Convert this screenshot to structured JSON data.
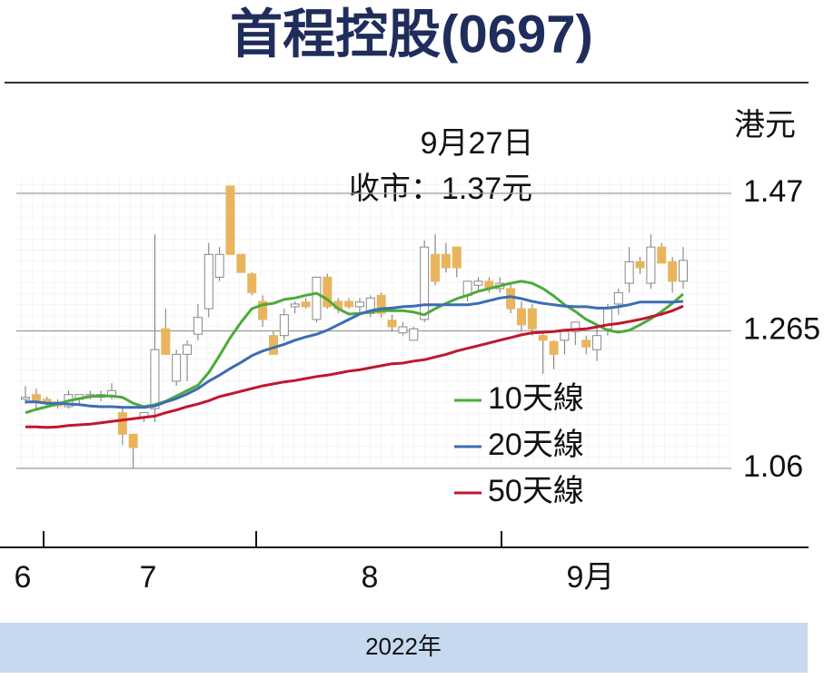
{
  "chart_data": {
    "type": "candlestick",
    "title": "首程控股(0697)",
    "unit_label": "港元",
    "annotations": [
      "9月27日",
      "收市：1.37元"
    ],
    "month_labels": [
      "6",
      "7",
      "8",
      "9月"
    ],
    "x_label": "2022年",
    "ylim": [
      1.06,
      1.47
    ],
    "yticks": [
      1.06,
      1.265,
      1.47
    ],
    "grid": true,
    "up_color": "#ffffff",
    "down_color": "#e9b55c",
    "open": [
      1.163,
      1.17,
      1.163,
      1.159,
      1.152,
      1.163,
      1.167,
      1.166,
      1.167,
      1.143,
      1.111,
      1.136,
      1.149,
      1.268,
      1.19,
      1.23,
      1.26,
      1.298,
      1.345,
      1.481,
      1.379,
      1.35,
      1.309,
      1.258,
      1.258,
      1.301,
      1.308,
      1.282,
      1.345,
      1.309,
      1.309,
      1.301,
      1.291,
      1.318,
      1.281,
      1.262,
      1.251,
      1.282,
      1.379,
      1.379,
      1.39,
      1.318,
      1.333,
      1.339,
      1.328,
      1.328,
      1.298,
      1.298,
      1.258,
      1.249,
      1.251,
      1.264,
      1.251,
      1.237,
      1.268,
      1.305,
      1.336,
      1.368,
      1.336,
      1.39,
      1.368,
      1.339
    ],
    "high": [
      1.183,
      1.179,
      1.167,
      1.163,
      1.176,
      1.17,
      1.176,
      1.176,
      1.187,
      1.149,
      1.111,
      1.143,
      1.409,
      1.298,
      1.237,
      1.251,
      1.305,
      1.396,
      1.39,
      1.481,
      1.379,
      1.352,
      1.318,
      1.264,
      1.298,
      1.309,
      1.314,
      1.345,
      1.35,
      1.314,
      1.314,
      1.314,
      1.318,
      1.322,
      1.289,
      1.278,
      1.271,
      1.4,
      1.409,
      1.396,
      1.39,
      1.339,
      1.345,
      1.345,
      1.345,
      1.336,
      1.309,
      1.305,
      1.264,
      1.251,
      1.268,
      1.278,
      1.258,
      1.271,
      1.305,
      1.328,
      1.39,
      1.375,
      1.409,
      1.396,
      1.375,
      1.39
    ],
    "low": [
      1.156,
      1.149,
      1.152,
      1.149,
      1.149,
      1.156,
      1.163,
      1.16,
      1.163,
      1.095,
      1.06,
      1.129,
      1.129,
      1.23,
      1.183,
      1.19,
      1.251,
      1.285,
      1.339,
      1.379,
      1.352,
      1.318,
      1.271,
      1.23,
      1.251,
      1.291,
      1.298,
      1.278,
      1.298,
      1.291,
      1.298,
      1.291,
      1.285,
      1.285,
      1.264,
      1.258,
      1.251,
      1.278,
      1.333,
      1.352,
      1.345,
      1.309,
      1.322,
      1.322,
      1.322,
      1.291,
      1.264,
      1.258,
      1.201,
      1.208,
      1.23,
      1.244,
      1.23,
      1.22,
      1.258,
      1.289,
      1.322,
      1.35,
      1.328,
      1.366,
      1.322,
      1.328
    ],
    "close": [
      1.166,
      1.16,
      1.156,
      1.153,
      1.17,
      1.17,
      1.17,
      1.17,
      1.176,
      1.111,
      1.091,
      1.143,
      1.237,
      1.23,
      1.23,
      1.244,
      1.285,
      1.379,
      1.379,
      1.379,
      1.352,
      1.322,
      1.282,
      1.23,
      1.289,
      1.305,
      1.301,
      1.345,
      1.301,
      1.298,
      1.301,
      1.308,
      1.314,
      1.291,
      1.271,
      1.271,
      1.268,
      1.39,
      1.339,
      1.359,
      1.359,
      1.339,
      1.339,
      1.328,
      1.336,
      1.298,
      1.274,
      1.268,
      1.251,
      1.23,
      1.264,
      1.278,
      1.241,
      1.258,
      1.298,
      1.322,
      1.368,
      1.359,
      1.39,
      1.366,
      1.339,
      1.37
    ],
    "series": [
      {
        "name": "10天線",
        "color": "#4caa3c",
        "values": [
          1.143,
          1.148,
          1.152,
          1.156,
          1.161,
          1.164,
          1.167,
          1.168,
          1.168,
          1.166,
          1.157,
          1.152,
          1.155,
          1.16,
          1.168,
          1.176,
          1.184,
          1.203,
          1.228,
          1.255,
          1.278,
          1.298,
          1.304,
          1.306,
          1.312,
          1.314,
          1.318,
          1.321,
          1.312,
          1.298,
          1.29,
          1.291,
          1.293,
          1.295,
          1.295,
          1.295,
          1.293,
          1.289,
          1.298,
          1.306,
          1.313,
          1.318,
          1.324,
          1.328,
          1.332,
          1.336,
          1.339,
          1.336,
          1.328,
          1.317,
          1.304,
          1.294,
          1.282,
          1.274,
          1.266,
          1.263,
          1.266,
          1.274,
          1.283,
          1.294,
          1.306,
          1.32
        ]
      },
      {
        "name": "20天線",
        "color": "#3b6db3",
        "values": [
          1.159,
          1.159,
          1.157,
          1.157,
          1.156,
          1.155,
          1.153,
          1.152,
          1.152,
          1.151,
          1.151,
          1.151,
          1.153,
          1.159,
          1.164,
          1.171,
          1.179,
          1.19,
          1.199,
          1.209,
          1.218,
          1.228,
          1.235,
          1.24,
          1.245,
          1.251,
          1.256,
          1.26,
          1.266,
          1.274,
          1.282,
          1.29,
          1.295,
          1.298,
          1.299,
          1.301,
          1.302,
          1.304,
          1.304,
          1.304,
          1.304,
          1.304,
          1.306,
          1.31,
          1.314,
          1.316,
          1.313,
          1.309,
          1.306,
          1.304,
          1.302,
          1.301,
          1.301,
          1.299,
          1.299,
          1.301,
          1.304,
          1.308,
          1.308,
          1.308,
          1.308,
          1.309
        ]
      },
      {
        "name": "50天線",
        "color": "#c0172e",
        "values": [
          1.122,
          1.122,
          1.121,
          1.122,
          1.124,
          1.125,
          1.126,
          1.128,
          1.13,
          1.132,
          1.134,
          1.136,
          1.138,
          1.143,
          1.147,
          1.152,
          1.156,
          1.161,
          1.167,
          1.171,
          1.175,
          1.179,
          1.183,
          1.186,
          1.189,
          1.191,
          1.194,
          1.197,
          1.199,
          1.202,
          1.205,
          1.207,
          1.21,
          1.213,
          1.216,
          1.217,
          1.22,
          1.222,
          1.226,
          1.23,
          1.235,
          1.239,
          1.243,
          1.247,
          1.251,
          1.255,
          1.259,
          1.262,
          1.263,
          1.264,
          1.266,
          1.267,
          1.268,
          1.271,
          1.274,
          1.276,
          1.279,
          1.282,
          1.286,
          1.29,
          1.295,
          1.302
        ]
      }
    ]
  }
}
